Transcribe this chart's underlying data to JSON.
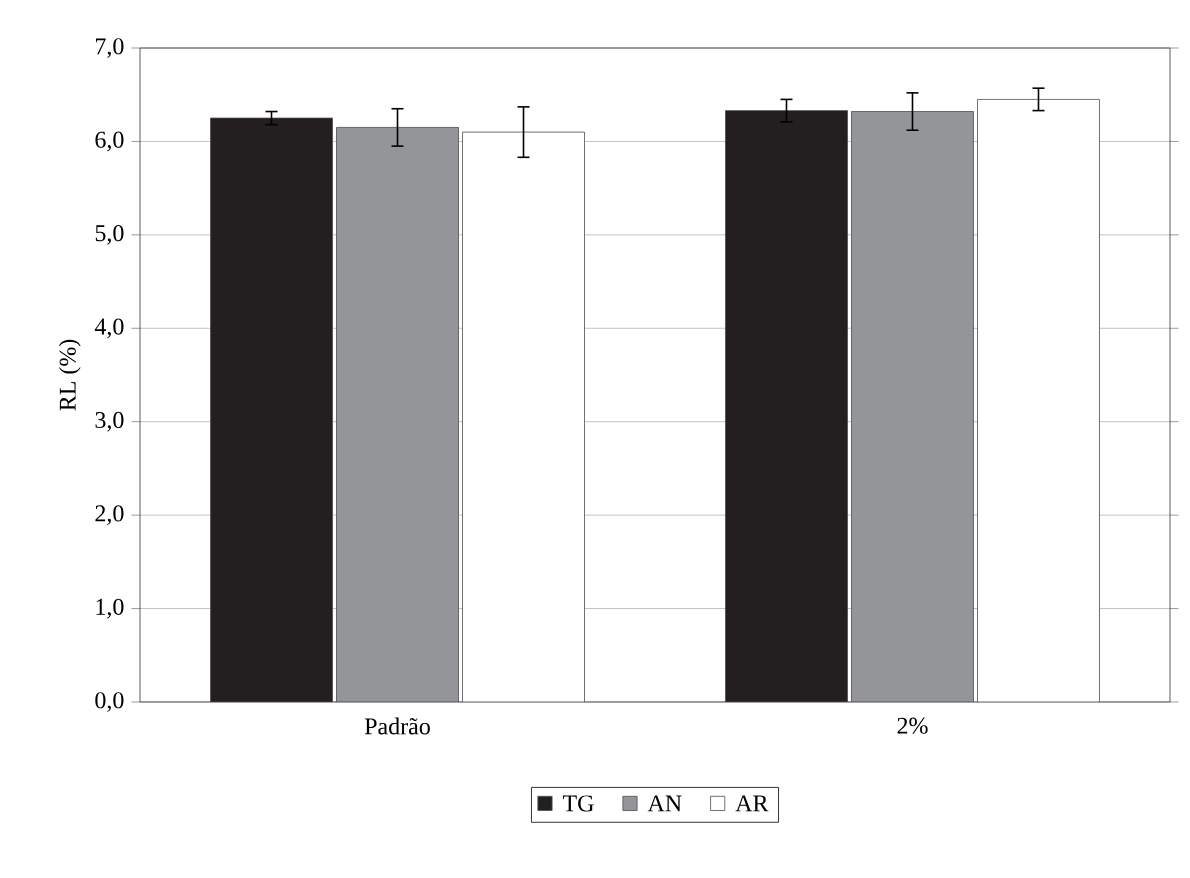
{
  "chart_data": {
    "type": "bar",
    "ylabel": "RL (%)",
    "categories": [
      "Padrão",
      "2%"
    ],
    "series": [
      {
        "name": "TG",
        "color": "#231f20",
        "values": [
          6.25,
          6.33
        ],
        "errors": [
          0.07,
          0.12
        ]
      },
      {
        "name": "AN",
        "color": "#939598",
        "values": [
          6.15,
          6.32
        ],
        "errors": [
          0.2,
          0.2
        ]
      },
      {
        "name": "AR",
        "color": "#ffffff",
        "values": [
          6.1,
          6.45
        ],
        "errors": [
          0.27,
          0.12
        ]
      }
    ],
    "ylim": [
      0,
      7
    ],
    "yticks": [
      {
        "value": 0,
        "label": "0,0"
      },
      {
        "value": 1,
        "label": "1,0"
      },
      {
        "value": 2,
        "label": "2,0"
      },
      {
        "value": 3,
        "label": "3,0"
      },
      {
        "value": 4,
        "label": "4,0"
      },
      {
        "value": 5,
        "label": "5,0"
      },
      {
        "value": 6,
        "label": "6,0"
      },
      {
        "value": 7,
        "label": "7,0"
      }
    ],
    "grid": "y",
    "legend": "bottom"
  }
}
